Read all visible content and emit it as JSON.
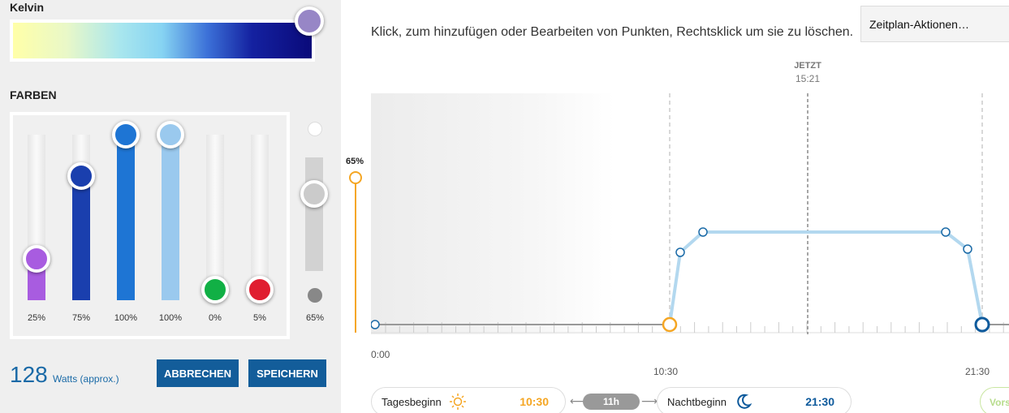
{
  "kelvin": {
    "title": "Kelvin",
    "knob_color": "#9786c6"
  },
  "colors": {
    "title": "FARBEN",
    "channels": [
      {
        "value": 25,
        "label": "25%",
        "color": "#a85ce0"
      },
      {
        "value": 75,
        "label": "75%",
        "color": "#1a3fae"
      },
      {
        "value": 100,
        "label": "100%",
        "color": "#1e75d4"
      },
      {
        "value": 100,
        "label": "100%",
        "color": "#9ac9ee"
      },
      {
        "value": 0,
        "label": "0%",
        "color": "#11b045"
      },
      {
        "value": 5,
        "label": "5%",
        "color": "#e01e30"
      }
    ],
    "master": {
      "value": 65,
      "label": "65%"
    }
  },
  "power": {
    "value": "128",
    "unit": "Watts (approx.)"
  },
  "buttons": {
    "cancel": "ABBRECHEN",
    "save": "SPEICHERN"
  },
  "schedule": {
    "instruction": "Klick, zum hinzufügen oder Bearbeiten von Punkten, Rechtsklick um sie zu löschen.",
    "actions_label": "Zeitplan-Aktionen…",
    "now_label": "JETZT",
    "now_time": "15:21",
    "intensity_label": "65%",
    "time_start": "0:00",
    "time_mid": "10:30",
    "time_end": "21:30",
    "day_start_label": "Tagesbeginn",
    "day_start_time": "10:30",
    "duration": "11h",
    "night_start_label": "Nachtbeginn",
    "night_start_time": "21:30",
    "preview_label": "Vors"
  },
  "colors_theme": {
    "accent": "#135d9a",
    "day": "#f5a623",
    "curve": "#b3d8ef"
  }
}
